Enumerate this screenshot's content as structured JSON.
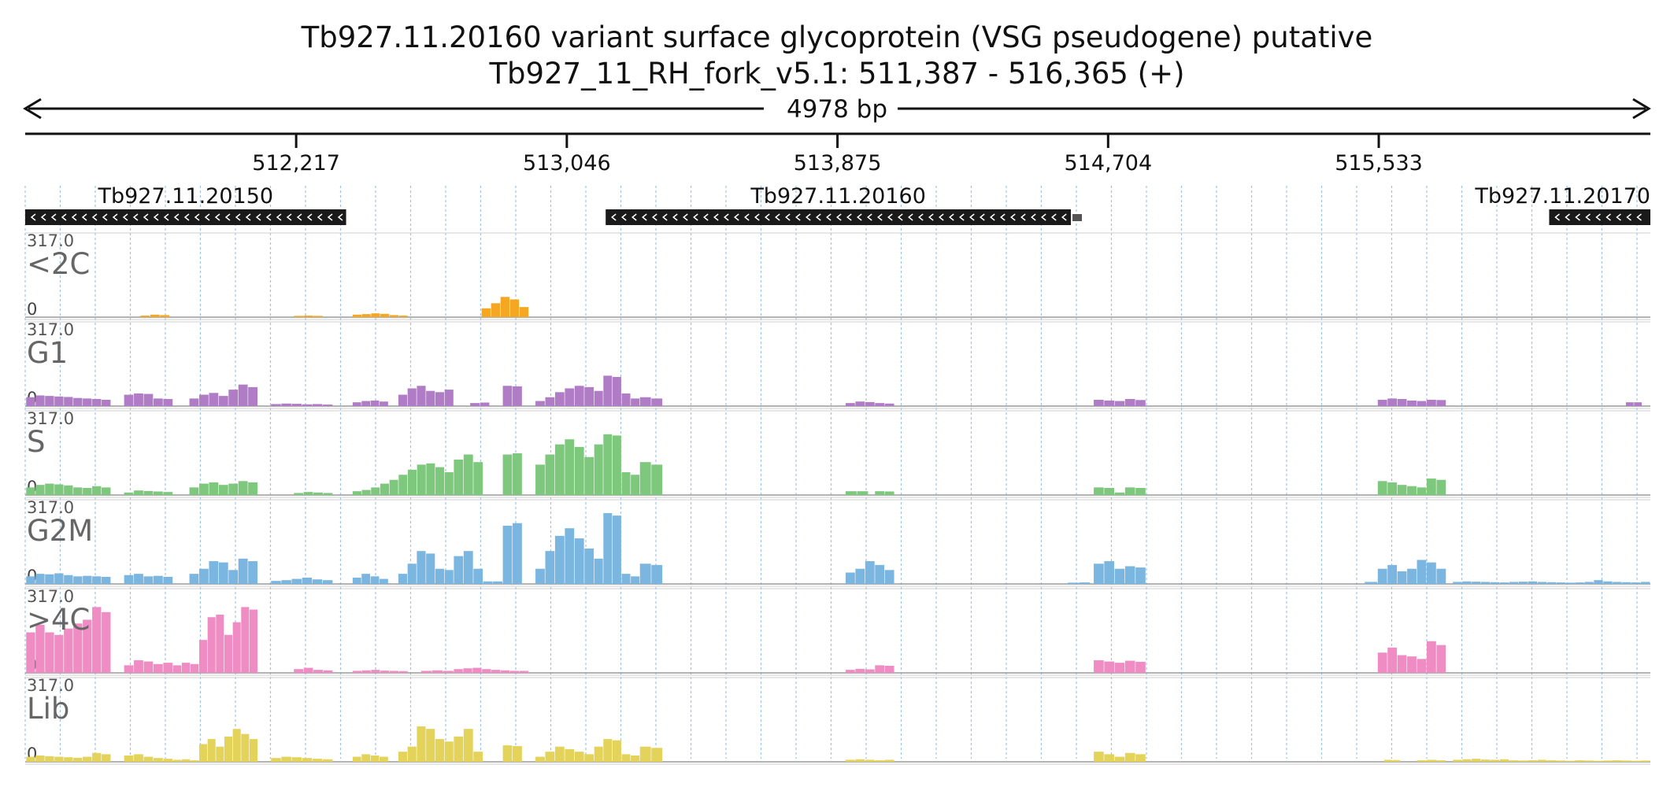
{
  "chart_data": {
    "type": "area",
    "title": "Tb927.11.20160  variant surface glycoprotein (VSG  pseudogene)  putative",
    "subtitle": "Tb927_11_RH_fork_v5.1: 511,387 - 516,365 (+)",
    "span_label": "4978 bp",
    "xlim": [
      511387,
      516365
    ],
    "x_ticks": [
      512217,
      513046,
      513875,
      514704,
      515533
    ],
    "x_tick_labels": [
      "512,217",
      "513,046",
      "513,875",
      "514,704",
      "515,533"
    ],
    "ylim": [
      0,
      317.0
    ],
    "y_max_label": "317.0",
    "y_min_label": "0",
    "genes": [
      {
        "name": "Tb927.11.20150",
        "start": 511387,
        "end": 512370,
        "strand": "-"
      },
      {
        "name": "Tb927.11.20160",
        "start": 513165,
        "end": 514590,
        "strand": "-"
      },
      {
        "name": "Tb927.11.20170",
        "start": 516055,
        "end": 516365,
        "strand": "-"
      }
    ],
    "bin_size": 29,
    "series": [
      {
        "name": "<2C",
        "color": "#f5a623",
        "segments": [
          {
            "start": 511740,
            "end": 511830,
            "values": [
              6,
              10,
              8
            ]
          },
          {
            "start": 512210,
            "end": 512300,
            "values": [
              5,
              6,
              5
            ]
          },
          {
            "start": 512390,
            "end": 512560,
            "values": [
              10,
              12,
              15,
              13,
              8,
              6
            ]
          },
          {
            "start": 512785,
            "end": 512930,
            "values": [
              35,
              55,
              80,
              70,
              40
            ]
          }
        ]
      },
      {
        "name": "G1",
        "color": "#b07cc6",
        "segments": [
          {
            "start": 511390,
            "end": 511650,
            "values": [
              35,
              42,
              40,
              38,
              36,
              32,
              30,
              28,
              25
            ]
          },
          {
            "start": 511690,
            "end": 511840,
            "values": [
              45,
              50,
              48,
              30,
              28
            ]
          },
          {
            "start": 511890,
            "end": 512100,
            "values": [
              30,
              45,
              52,
              40,
              65,
              85,
              75
            ]
          },
          {
            "start": 512140,
            "end": 512330,
            "values": [
              8,
              10,
              9,
              7,
              8,
              6
            ]
          },
          {
            "start": 512390,
            "end": 512500,
            "values": [
              15,
              20,
              22,
              18
            ]
          },
          {
            "start": 512530,
            "end": 512700,
            "values": [
              45,
              70,
              80,
              60,
              55,
              65
            ]
          },
          {
            "start": 512750,
            "end": 512810,
            "values": [
              12,
              14
            ]
          },
          {
            "start": 512850,
            "end": 512910,
            "values": [
              80,
              78
            ]
          },
          {
            "start": 512950,
            "end": 513130,
            "values": [
              20,
              35,
              55,
              70,
              80,
              75
            ]
          },
          {
            "start": 513130,
            "end": 513270,
            "values": [
              60,
              120,
              115,
              50,
              30
            ]
          },
          {
            "start": 513270,
            "end": 513340,
            "values": [
              35,
              30
            ]
          },
          {
            "start": 513900,
            "end": 514050,
            "values": [
              12,
              18,
              16,
              12,
              10
            ]
          },
          {
            "start": 514660,
            "end": 514820,
            "values": [
              25,
              22,
              20,
              28,
              24
            ]
          },
          {
            "start": 515530,
            "end": 515740,
            "values": [
              25,
              30,
              28,
              22,
              20,
              25,
              24
            ]
          },
          {
            "start": 516290,
            "end": 516340,
            "values": [
              15,
              15
            ]
          }
        ]
      },
      {
        "name": "S",
        "color": "#7ec87e",
        "segments": [
          {
            "start": 511390,
            "end": 511650,
            "values": [
              30,
              40,
              45,
              42,
              38,
              30,
              28,
              35,
              30
            ]
          },
          {
            "start": 511690,
            "end": 511840,
            "values": [
              10,
              18,
              16,
              14,
              12
            ]
          },
          {
            "start": 511890,
            "end": 512100,
            "values": [
              30,
              45,
              50,
              40,
              45,
              55,
              50
            ]
          },
          {
            "start": 512210,
            "end": 512330,
            "values": [
              8,
              12,
              10,
              8
            ]
          },
          {
            "start": 512390,
            "end": 512700,
            "values": [
              15,
              20,
              30,
              45,
              60,
              80,
              100,
              120,
              125,
              110,
              90
            ]
          },
          {
            "start": 512700,
            "end": 512790,
            "values": [
              140,
              160,
              130
            ]
          },
          {
            "start": 512850,
            "end": 512910,
            "values": [
              160,
              165
            ]
          },
          {
            "start": 512950,
            "end": 513130,
            "values": [
              120,
              160,
              200,
              220,
              190,
              150
            ]
          },
          {
            "start": 513130,
            "end": 513270,
            "values": [
              200,
              240,
              235,
              90,
              80
            ]
          },
          {
            "start": 513270,
            "end": 513340,
            "values": [
              130,
              120
            ]
          },
          {
            "start": 513900,
            "end": 513970,
            "values": [
              15,
              15
            ]
          },
          {
            "start": 513990,
            "end": 514050,
            "values": [
              15,
              14
            ]
          },
          {
            "start": 514660,
            "end": 514820,
            "values": [
              30,
              28,
              10,
              30,
              28
            ]
          },
          {
            "start": 515530,
            "end": 515740,
            "values": [
              55,
              50,
              40,
              35,
              30,
              65,
              60
            ]
          }
        ]
      },
      {
        "name": "G2M",
        "color": "#7bb6e0",
        "segments": [
          {
            "start": 511390,
            "end": 511650,
            "values": [
              30,
              40,
              38,
              42,
              35,
              30,
              32,
              30,
              28
            ]
          },
          {
            "start": 511690,
            "end": 511840,
            "values": [
              35,
              40,
              30,
              32,
              28
            ]
          },
          {
            "start": 511890,
            "end": 512100,
            "values": [
              40,
              60,
              90,
              85,
              55,
              100,
              90
            ]
          },
          {
            "start": 512140,
            "end": 512330,
            "values": [
              12,
              15,
              20,
              25,
              18,
              15
            ]
          },
          {
            "start": 512390,
            "end": 512500,
            "values": [
              25,
              40,
              30,
              20
            ]
          },
          {
            "start": 512530,
            "end": 512700,
            "values": [
              40,
              80,
              130,
              120,
              60,
              55
            ]
          },
          {
            "start": 512700,
            "end": 512790,
            "values": [
              110,
              130,
              60
            ]
          },
          {
            "start": 512790,
            "end": 512850,
            "values": [
              10,
              10
            ]
          },
          {
            "start": 512850,
            "end": 512910,
            "values": [
              230,
              240
            ]
          },
          {
            "start": 512950,
            "end": 513130,
            "values": [
              60,
              130,
              190,
              220,
              180,
              140
            ]
          },
          {
            "start": 513130,
            "end": 513270,
            "values": [
              100,
              280,
              270,
              40,
              30
            ]
          },
          {
            "start": 513270,
            "end": 513340,
            "values": [
              80,
              75
            ]
          },
          {
            "start": 513900,
            "end": 514050,
            "values": [
              45,
              60,
              90,
              75,
              55
            ]
          },
          {
            "start": 514580,
            "end": 514650,
            "values": [
              5,
              6
            ]
          },
          {
            "start": 514660,
            "end": 514820,
            "values": [
              80,
              90,
              60,
              70,
              65
            ]
          },
          {
            "start": 515490,
            "end": 515530,
            "values": [
              8
            ]
          },
          {
            "start": 515530,
            "end": 515740,
            "values": [
              60,
              75,
              50,
              60,
              95,
              85,
              60
            ]
          },
          {
            "start": 515760,
            "end": 516365,
            "values": [
              8,
              10,
              9,
              8,
              7,
              6,
              8,
              9,
              10,
              8,
              7,
              6,
              5,
              6,
              8,
              15,
              10,
              8,
              7,
              6,
              8
            ]
          }
        ]
      },
      {
        "name": ">4C",
        "color": "#f08cc4",
        "segments": [
          {
            "start": 511390,
            "end": 511650,
            "values": [
              160,
              190,
              160,
              150,
              175,
              195,
              210,
              260,
              240
            ]
          },
          {
            "start": 511690,
            "end": 511840,
            "values": [
              30,
              50,
              45,
              35,
              40
            ]
          },
          {
            "start": 511840,
            "end": 511920,
            "values": [
              30,
              40,
              35
            ]
          },
          {
            "start": 511920,
            "end": 512100,
            "values": [
              130,
              220,
              230,
              150,
              200,
              260,
              250
            ]
          },
          {
            "start": 512210,
            "end": 512330,
            "values": [
              15,
              20,
              12,
              10
            ]
          },
          {
            "start": 512390,
            "end": 512560,
            "values": [
              8,
              10,
              12,
              9,
              8,
              7
            ]
          },
          {
            "start": 512600,
            "end": 512700,
            "values": [
              8,
              10,
              8
            ]
          },
          {
            "start": 512700,
            "end": 512930,
            "values": [
              15,
              18,
              20,
              15,
              12,
              10,
              8,
              8
            ]
          },
          {
            "start": 513900,
            "end": 514050,
            "values": [
              12,
              16,
              14,
              30,
              28
            ]
          },
          {
            "start": 514660,
            "end": 514820,
            "values": [
              50,
              45,
              40,
              48,
              44
            ]
          },
          {
            "start": 515530,
            "end": 515740,
            "values": [
              80,
              100,
              70,
              65,
              55,
              125,
              110
            ]
          }
        ]
      },
      {
        "name": "Lib",
        "color": "#e4d35a",
        "segments": [
          {
            "start": 511390,
            "end": 511650,
            "values": [
              20,
              25,
              22,
              20,
              18,
              16,
              20,
              35,
              30
            ]
          },
          {
            "start": 511690,
            "end": 511840,
            "values": [
              25,
              30,
              20,
              15,
              12
            ]
          },
          {
            "start": 511840,
            "end": 511920,
            "values": [
              8,
              10,
              6
            ]
          },
          {
            "start": 511920,
            "end": 512100,
            "values": [
              70,
              90,
              60,
              100,
              130,
              110,
              90
            ]
          },
          {
            "start": 512140,
            "end": 512330,
            "values": [
              15,
              20,
              18,
              15,
              12,
              10
            ]
          },
          {
            "start": 512390,
            "end": 512500,
            "values": [
              20,
              30,
              25,
              20
            ]
          },
          {
            "start": 512530,
            "end": 512700,
            "values": [
              40,
              60,
              140,
              130,
              90,
              80
            ]
          },
          {
            "start": 512700,
            "end": 512790,
            "values": [
              100,
              130,
              40
            ]
          },
          {
            "start": 512850,
            "end": 512910,
            "values": [
              65,
              62
            ]
          },
          {
            "start": 512950,
            "end": 513130,
            "values": [
              20,
              40,
              60,
              50,
              40,
              30
            ]
          },
          {
            "start": 513130,
            "end": 513270,
            "values": [
              60,
              90,
              85,
              30,
              25
            ]
          },
          {
            "start": 513270,
            "end": 513340,
            "values": [
              60,
              55
            ]
          },
          {
            "start": 513900,
            "end": 514050,
            "values": [
              8,
              10,
              8,
              6,
              8
            ]
          },
          {
            "start": 514660,
            "end": 514820,
            "values": [
              40,
              30,
              20,
              35,
              30
            ]
          },
          {
            "start": 515550,
            "end": 515600,
            "values": [
              8,
              7
            ]
          },
          {
            "start": 515650,
            "end": 515740,
            "values": [
              6,
              8,
              6
            ]
          },
          {
            "start": 515760,
            "end": 516365,
            "values": [
              8,
              10,
              12,
              9,
              8,
              10,
              6,
              5,
              6,
              8,
              6,
              5,
              4,
              6,
              5,
              4,
              5,
              6,
              5,
              4,
              5
            ]
          }
        ]
      }
    ]
  }
}
